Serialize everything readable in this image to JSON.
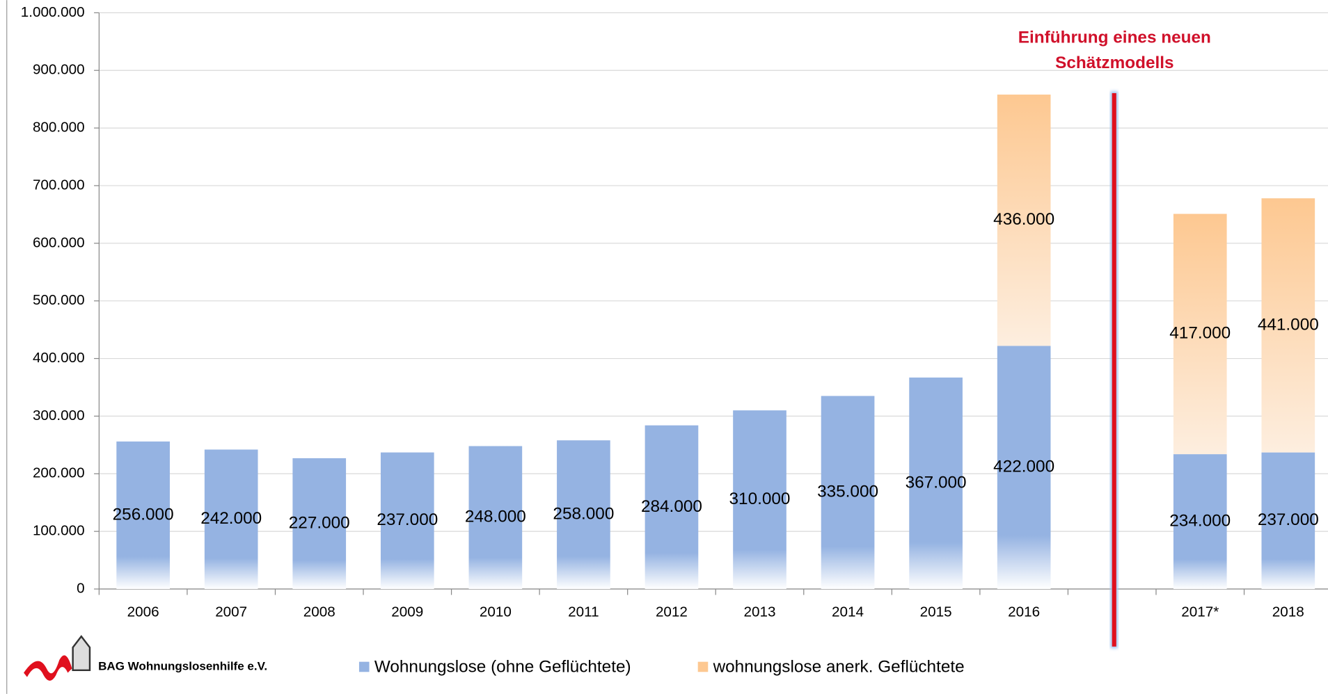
{
  "chart_data": {
    "type": "stacked_bar",
    "annotation": [
      "Einführung eines neuen",
      "Schätzmodells"
    ],
    "source": "BAG Wohnungslosenhilfe e.V.",
    "categories": [
      "2006",
      "2007",
      "2008",
      "2009",
      "2010",
      "2011",
      "2012",
      "2013",
      "2014",
      "2015",
      "2016",
      null,
      "2017*",
      "2018"
    ],
    "series": [
      {
        "name": "Wohnungslose (ohne Geflüchtete)",
        "color": "#95b3e2",
        "values": [
          256000,
          242000,
          227000,
          237000,
          248000,
          258000,
          284000,
          310000,
          335000,
          367000,
          422000,
          null,
          234000,
          237000
        ],
        "value_labels": [
          "256.000",
          "242.000",
          "227.000",
          "237.000",
          "248.000",
          "258.000",
          "284.000",
          "310.000",
          "335.000",
          "367.000",
          "422.000",
          null,
          "234.000",
          "237.000"
        ]
      },
      {
        "name": "wohnungslose anerk. Geflüchtete",
        "color": "#fdc891",
        "values": [
          null,
          null,
          null,
          null,
          null,
          null,
          null,
          null,
          null,
          null,
          436000,
          null,
          417000,
          441000
        ],
        "value_labels": [
          null,
          null,
          null,
          null,
          null,
          null,
          null,
          null,
          null,
          null,
          "436.000",
          null,
          "417.000",
          "441.000"
        ]
      }
    ],
    "ylim": [
      0,
      1000000
    ],
    "yticks": [
      0,
      {
        "value": 100000,
        "label": "100.000"
      },
      {
        "value": 200000,
        "label": "200.000"
      },
      {
        "value": 300000,
        "label": "300.000"
      },
      {
        "value": 400000,
        "label": "400.000"
      },
      {
        "value": 500000,
        "label": "500.000"
      },
      {
        "value": 600000,
        "label": "600.000"
      },
      {
        "value": 700000,
        "label": "700.000"
      },
      {
        "value": 800000,
        "label": "800.000"
      },
      {
        "value": 900000,
        "label": "900.000"
      },
      {
        "value": 1000000,
        "label": "1.000.000"
      }
    ],
    "grid": true,
    "legend": "bottom"
  }
}
